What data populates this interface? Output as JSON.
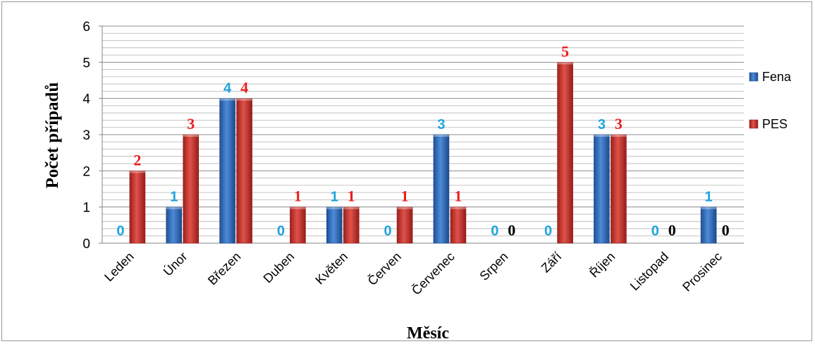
{
  "chart_data": {
    "type": "bar",
    "title": "",
    "xlabel": "Měsíc",
    "ylabel": "Počet případů",
    "ylim": [
      0,
      6
    ],
    "yticks": [
      0,
      1,
      2,
      3,
      4,
      5,
      6
    ],
    "grid": true,
    "legend_position": "right",
    "categories": [
      "Leden",
      "Únor",
      "Březen",
      "Duben",
      "Květen",
      "Červen",
      "Červenec",
      "Srpen",
      "Září",
      "Říjen",
      "Listopad",
      "Prosinec"
    ],
    "series": [
      {
        "name": "Fena",
        "color": "#2e66b4",
        "label_color": "#1fa3dc",
        "values": [
          0,
          1,
          4,
          0,
          1,
          0,
          3,
          0,
          0,
          3,
          0,
          1
        ],
        "data_labels": [
          "0",
          "1",
          "4",
          "0",
          "1",
          "0",
          "3",
          "0",
          "0",
          "3",
          "0",
          "1"
        ]
      },
      {
        "name": "PES",
        "color": "#c8312b",
        "label_color": "#ee1c1c",
        "zero_label_color": "#000000",
        "values": [
          2,
          3,
          4,
          1,
          1,
          1,
          1,
          0,
          5,
          3,
          0,
          0
        ],
        "data_labels": [
          "2",
          "3",
          "4",
          "1",
          "1",
          "1",
          "1",
          "0",
          "5",
          "3",
          "0",
          "0"
        ]
      }
    ]
  }
}
